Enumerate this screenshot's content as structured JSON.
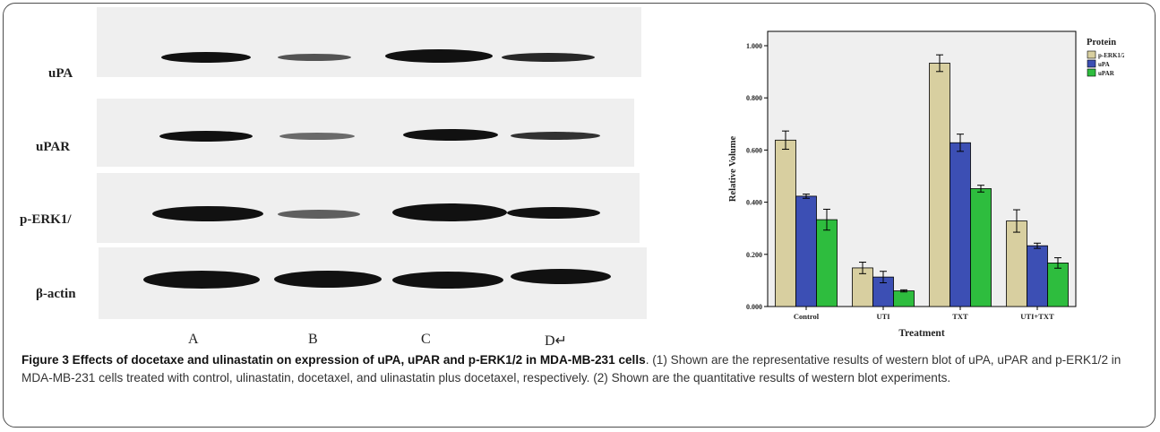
{
  "blot": {
    "labels": [
      "uPA",
      "uPAR",
      "p-ERK1/",
      "β-actin"
    ],
    "lanes": [
      "A",
      "B",
      "C",
      "D↵"
    ]
  },
  "chart_data": {
    "type": "bar",
    "categories": [
      "Control",
      "UTI",
      "TXT",
      "UTI+TXT"
    ],
    "series": [
      {
        "name": "p-ERK1/2",
        "values": [
          0.638,
          0.148,
          0.933,
          0.328
        ],
        "errors": [
          0.035,
          0.022,
          0.032,
          0.043
        ],
        "color": "#d8cfa0"
      },
      {
        "name": "uPA",
        "values": [
          0.423,
          0.113,
          0.628,
          0.233
        ],
        "errors": [
          0.008,
          0.022,
          0.033,
          0.01
        ],
        "color": "#3c4fb4"
      },
      {
        "name": "uPAR",
        "values": [
          0.333,
          0.06,
          0.452,
          0.167
        ],
        "errors": [
          0.04,
          0.004,
          0.013,
          0.02
        ],
        "color": "#2ebd3e"
      }
    ],
    "ylabel": "Relative Volume",
    "xlabel": "Treatment",
    "legend_title": "Protein",
    "ylim": [
      0,
      1.0
    ],
    "yticks": [
      "0.000",
      "0.200",
      "0.400",
      "0.600",
      "0.800",
      "1.000"
    ],
    "legend_position": "top-right",
    "plot_bg": "#efefef"
  },
  "caption": {
    "title": "Figure 3 Effects of docetaxe and ulinastatin on expression of uPA, uPAR and p-ERK1/2 in MDA-MB-231 cells",
    "text": ". (1) Shown are the representative results of western blot of uPA, uPAR and p-ERK1/2 in MDA-MB-231 cells treated with control, ulinastatin, docetaxel, and ulinastatin plus docetaxel, respectively. (2) Shown are the quantitative results of western blot experiments."
  }
}
